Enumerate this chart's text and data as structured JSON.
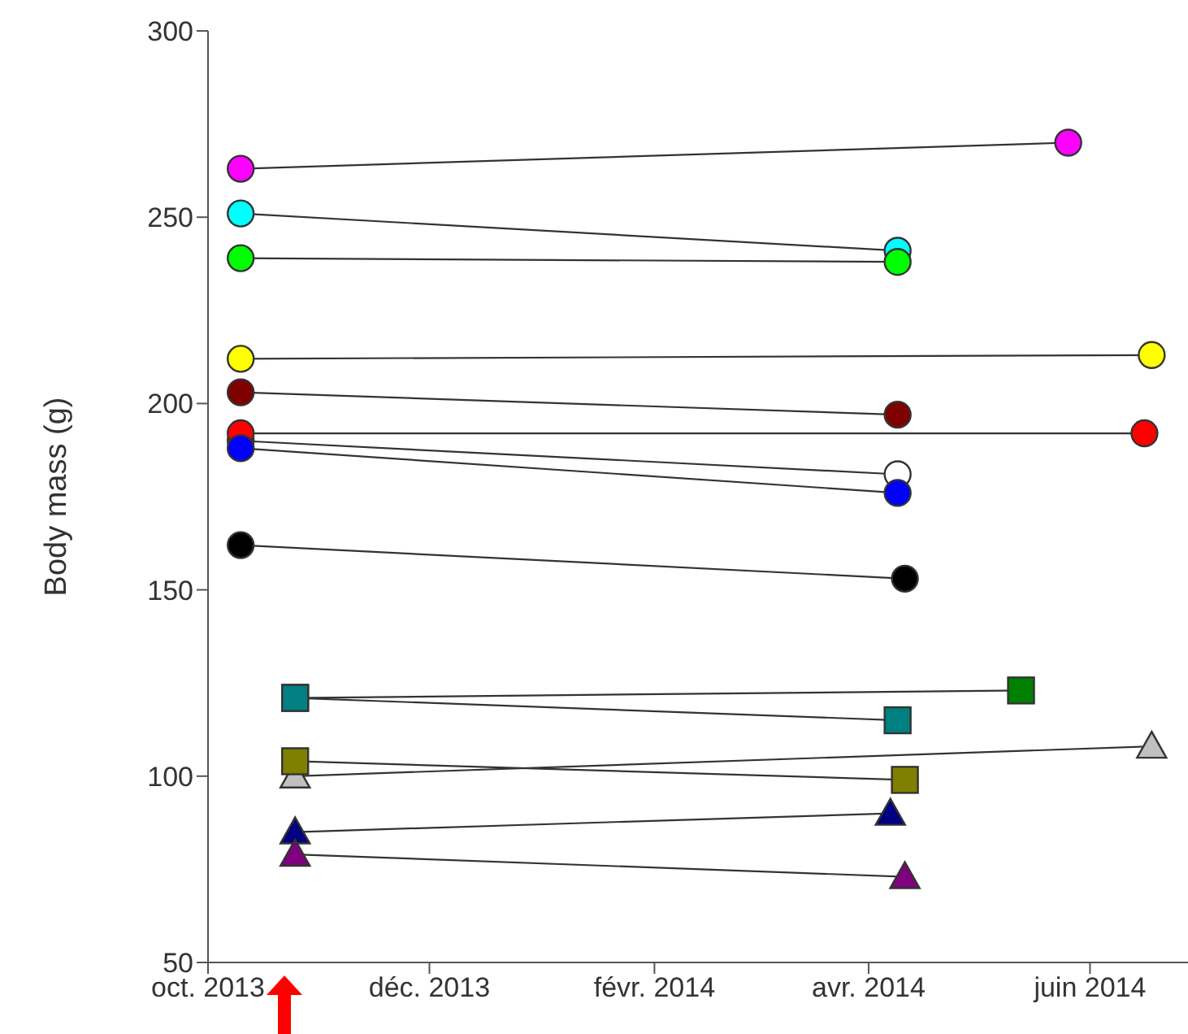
{
  "chart_data": {
    "type": "line",
    "ylabel": "Body mass (g)",
    "ylim": [
      50,
      300
    ],
    "yticks": [
      50,
      100,
      150,
      200,
      250,
      300
    ],
    "xlim": [
      "2013-10-01",
      "2014-06-28"
    ],
    "xticks": [
      {
        "value": "2013-10-01",
        "label": "oct. 2013"
      },
      {
        "value": "2013-12-01",
        "label": "déc. 2013"
      },
      {
        "value": "2014-02-01",
        "label": "févr. 2014"
      },
      {
        "value": "2014-04-01",
        "label": "avr. 2014"
      },
      {
        "value": "2014-06-01",
        "label": "juin 2014"
      }
    ],
    "grid": false,
    "legend": false,
    "line_style": "solid",
    "series": [
      {
        "color": "#ff00ff",
        "marker": "circle",
        "x": [
          "2013-10-10",
          "2014-05-26"
        ],
        "values": [
          263,
          270
        ]
      },
      {
        "color": "#00ffff",
        "marker": "circle",
        "x": [
          "2013-10-10",
          "2014-04-09"
        ],
        "values": [
          251,
          241
        ]
      },
      {
        "color": "#00ff00",
        "marker": "circle",
        "x": [
          "2013-10-10",
          "2014-04-09"
        ],
        "values": [
          239,
          238
        ]
      },
      {
        "color": "#ffff00",
        "marker": "circle",
        "x": [
          "2013-10-10",
          "2014-06-18"
        ],
        "values": [
          212,
          213
        ]
      },
      {
        "color": "#800000",
        "marker": "circle",
        "x": [
          "2013-10-10",
          "2014-04-09"
        ],
        "values": [
          203,
          197
        ]
      },
      {
        "color": "#ffffff",
        "marker": "circle",
        "x": [
          "2013-10-10",
          "2014-04-09"
        ],
        "values": [
          190,
          181
        ]
      },
      {
        "color": "#ff0000",
        "marker": "circle",
        "x": [
          "2013-10-10",
          "2014-06-16"
        ],
        "values": [
          192,
          192
        ]
      },
      {
        "color": "#0000ff",
        "marker": "circle",
        "x": [
          "2013-10-10",
          "2014-04-09"
        ],
        "values": [
          188,
          176
        ]
      },
      {
        "color": "#000000",
        "marker": "circle",
        "x": [
          "2013-10-10",
          "2014-04-11"
        ],
        "values": [
          162,
          153
        ]
      },
      {
        "color": "#008000",
        "marker": "square",
        "x": [
          "2013-10-25",
          "2014-05-13"
        ],
        "values": [
          121,
          123
        ]
      },
      {
        "color": "#008080",
        "marker": "square",
        "x": [
          "2013-10-25",
          "2014-04-09"
        ],
        "values": [
          121,
          115
        ]
      },
      {
        "color": "#c0c0c0",
        "marker": "triangle",
        "x": [
          "2013-10-25",
          "2014-06-18"
        ],
        "values": [
          100,
          108
        ]
      },
      {
        "color": "#808000",
        "marker": "square",
        "x": [
          "2013-10-25",
          "2014-04-11"
        ],
        "values": [
          104,
          99
        ]
      },
      {
        "color": "#000080",
        "marker": "triangle",
        "x": [
          "2013-10-25",
          "2014-04-07"
        ],
        "values": [
          85,
          90
        ]
      },
      {
        "color": "#800080",
        "marker": "triangle",
        "x": [
          "2013-10-25",
          "2014-04-11"
        ],
        "values": [
          79,
          73
        ]
      }
    ]
  }
}
